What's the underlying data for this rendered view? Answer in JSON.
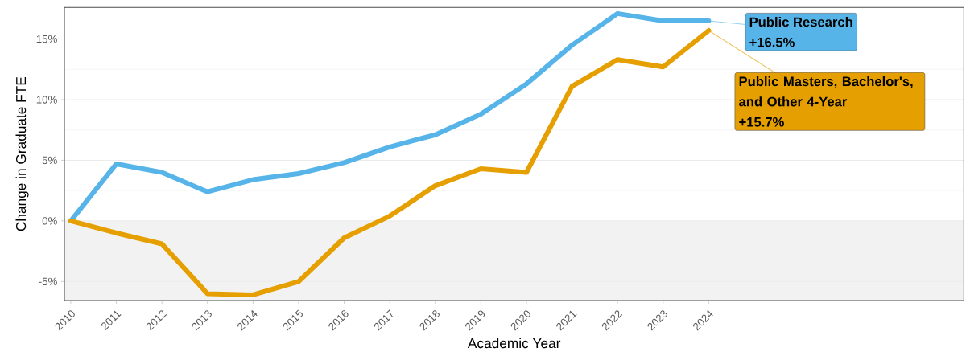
{
  "chart_data": {
    "type": "line",
    "xlabel": "Academic Year",
    "ylabel": "Change in Graduate FTE",
    "x": [
      2010,
      2011,
      2012,
      2013,
      2014,
      2015,
      2016,
      2017,
      2018,
      2019,
      2020,
      2021,
      2022,
      2023,
      2024
    ],
    "series": [
      {
        "name": "Public Research",
        "color": "#56b4e9",
        "values": [
          0,
          4.7,
          4.0,
          2.4,
          3.4,
          3.9,
          4.8,
          6.1,
          7.1,
          8.8,
          11.3,
          14.5,
          17.1,
          16.5,
          16.5
        ]
      },
      {
        "name": "Public Masters, Bachelor's, and Other 4-Year",
        "color": "#e69f00",
        "values": [
          0,
          -1.0,
          -1.9,
          -6.0,
          -6.1,
          -5.0,
          -1.4,
          0.4,
          2.9,
          4.3,
          4.0,
          11.1,
          13.3,
          12.7,
          15.7
        ]
      }
    ],
    "annotations": [
      "+16.5%",
      "+15.7%"
    ],
    "xlim": [
      2009.86,
      2029.6
    ],
    "ylim": [
      -6.57,
      17.6
    ],
    "xticks": [
      2010,
      2011,
      2012,
      2013,
      2014,
      2015,
      2016,
      2017,
      2018,
      2019,
      2020,
      2021,
      2022,
      2023,
      2024
    ],
    "yticks": [
      {
        "value": -5,
        "label": "-5%"
      },
      {
        "value": -2.5,
        "label": null
      },
      {
        "value": 0,
        "label": "0%"
      },
      {
        "value": 2.5,
        "label": null
      },
      {
        "value": 5,
        "label": "5%"
      },
      {
        "value": 7.5,
        "label": null
      },
      {
        "value": 10,
        "label": "10%"
      },
      {
        "value": 12.5,
        "label": null
      },
      {
        "value": 15,
        "label": "15%"
      }
    ],
    "bands": [
      {
        "axis": "y",
        "from": -6.57,
        "to": 0,
        "color": "#f2f2f2"
      }
    ],
    "grid": "y",
    "legend": false,
    "marker": "none",
    "line_style": "solid"
  }
}
